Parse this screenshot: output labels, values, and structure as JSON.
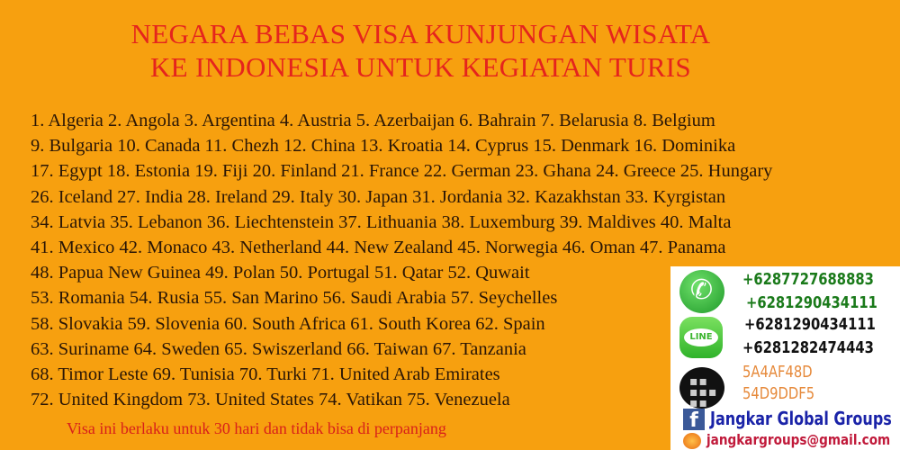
{
  "title": [
    "NEGARA BEBAS VISA KUNJUNGAN WISATA",
    "KE INDONESIA UNTUK KEGIATAN TURIS"
  ],
  "countries_lines": [
    "1. Algeria 2. Angola 3. Argentina 4. Austria 5. Azerbaijan 6. Bahrain 7. Belarusia 8. Belgium",
    "9. Bulgaria 10. Canada 11. Chezh 12. China 13. Kroatia 14. Cyprus 15. Denmark 16. Dominika",
    "17. Egypt 18. Estonia 19. Fiji 20. Finland 21. France 22. German 23. Ghana 24. Greece 25. Hungary",
    "26. Iceland 27. India 28. Ireland 29. Italy 30. Japan 31. Jordania 32. Kazakhstan 33. Kyrgistan",
    "34. Latvia 35. Lebanon 36. Liechtenstein 37. Lithuania 38. Luxemburg 39. Maldives 40. Malta",
    "41. Mexico 42. Monaco 43. Netherland 44. New Zealand 45. Norwegia 46. Oman 47. Panama",
    "48. Papua New Guinea 49. Polan 50. Portugal 51. Qatar 52. Quwait",
    "53. Romania 54. Rusia 55. San Marino 56. Saudi Arabia 57. Seychelles",
    "58. Slovakia 59. Slovenia 60. South Africa 61. South Korea 62. Spain",
    "63. Suriname 64. Sweden 65. Swiszerland 66. Taiwan 67. Tanzania",
    "68. Timor Leste 69. Tunisia 70. Turki 71. United Arab Emirates",
    "72. United Kingdom 73. United States 74. Vatikan 75. Venezuela"
  ],
  "note": "Visa ini berlaku untuk 30 hari dan tidak bisa di perpanjang",
  "contact": {
    "whatsapp": [
      "+6287727688883",
      "+6281290434111"
    ],
    "line_label": "LINE",
    "line": [
      "+6281290434111",
      "+6281282474443"
    ],
    "bbm": [
      "5A4AF48D",
      "54D9DDF5"
    ],
    "facebook": "Jangkar Global Groups",
    "email": "jangkargroups@gmail.com"
  },
  "colors": {
    "background": "#f7a00f",
    "title": "#e5241d",
    "whatsapp_text": "#1a7a1a",
    "line_text": "#111111",
    "bbm_text": "#e6893a",
    "facebook_text": "#1a23a8",
    "email_text": "#c0193a"
  }
}
